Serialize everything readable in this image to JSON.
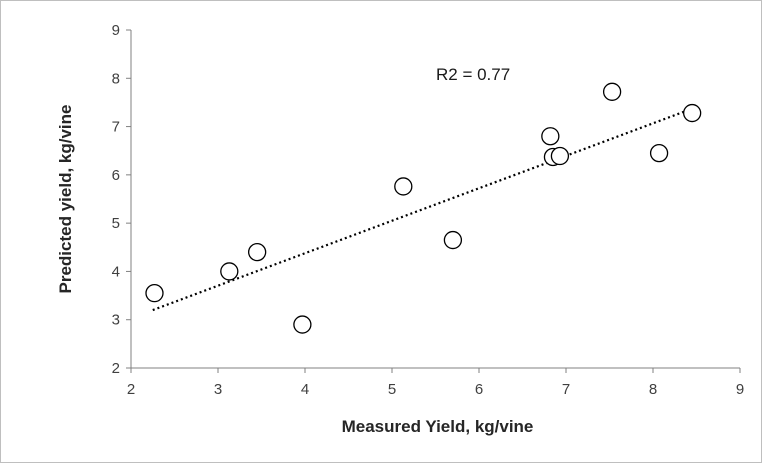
{
  "chart_data": {
    "type": "scatter",
    "xlabel": "Measured Yield, kg/vine",
    "ylabel": "Predicted yield, kg/vine",
    "xlim": [
      2,
      9
    ],
    "ylim": [
      2,
      9
    ],
    "xticks": [
      "2",
      "3",
      "4",
      "5",
      "6",
      "7",
      "8",
      "9"
    ],
    "yticks": [
      "2",
      "3",
      "4",
      "5",
      "6",
      "7",
      "8",
      "9"
    ],
    "grid": false,
    "legend": "none",
    "annotation": "R2 = 0.77",
    "points": [
      {
        "x": 2.27,
        "y": 3.55
      },
      {
        "x": 3.13,
        "y": 4.0
      },
      {
        "x": 3.45,
        "y": 4.4
      },
      {
        "x": 3.97,
        "y": 2.9
      },
      {
        "x": 5.13,
        "y": 5.76
      },
      {
        "x": 5.7,
        "y": 4.65
      },
      {
        "x": 6.82,
        "y": 6.8
      },
      {
        "x": 6.85,
        "y": 6.37
      },
      {
        "x": 6.93,
        "y": 6.39
      },
      {
        "x": 7.53,
        "y": 7.72
      },
      {
        "x": 8.07,
        "y": 6.45
      },
      {
        "x": 8.45,
        "y": 7.28
      }
    ],
    "trendline": {
      "style": "dotted",
      "x": [
        2.25,
        8.45
      ],
      "y": [
        3.2,
        7.37
      ]
    },
    "colors": {
      "marker_stroke": "#000000",
      "marker_fill": "#ffffff",
      "trendline": "#000000",
      "axis": "#808080"
    }
  }
}
